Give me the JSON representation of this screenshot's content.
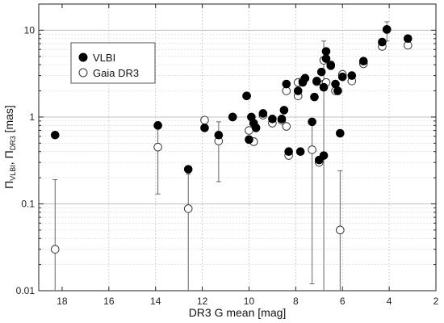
{
  "chart_data": {
    "type": "scatter",
    "xlabel": "DR3 G mean [mag]",
    "ylabel": {
      "main": "Π",
      "sub1": "VLBI",
      "sep": ", Π",
      "sub2": "DR3",
      "unit": " [mas]"
    },
    "x_reversed": true,
    "xlim": [
      19,
      2
    ],
    "ylim": [
      0.01,
      20
    ],
    "y_scale": "log",
    "grid": true,
    "x_ticks": [
      18,
      16,
      14,
      12,
      10,
      8,
      6,
      4,
      2
    ],
    "y_ticks": [
      {
        "value": 0.01,
        "label": "0.01"
      },
      {
        "value": 0.1,
        "label": "0.1"
      },
      {
        "value": 1,
        "label": "1"
      },
      {
        "value": 10,
        "label": "10"
      }
    ],
    "legend": {
      "placement": "top-left",
      "entries": [
        "VLBI",
        "Gaia DR3"
      ]
    },
    "series": [
      {
        "name": "VLBI",
        "marker": "filled-circle",
        "color": "#000000",
        "points": [
          [
            18.3,
            0.62
          ],
          [
            13.9,
            0.8
          ],
          [
            12.6,
            0.25
          ],
          [
            11.9,
            0.75
          ],
          [
            11.3,
            0.62
          ],
          [
            10.7,
            1.0
          ],
          [
            10.1,
            1.75
          ],
          [
            10.0,
            0.55
          ],
          [
            9.9,
            1.0
          ],
          [
            9.8,
            0.85
          ],
          [
            9.7,
            0.75
          ],
          [
            9.4,
            1.1
          ],
          [
            9.0,
            0.95
          ],
          [
            8.6,
            0.95
          ],
          [
            8.5,
            1.2
          ],
          [
            8.4,
            2.4
          ],
          [
            8.3,
            0.4
          ],
          [
            7.9,
            2.0
          ],
          [
            7.8,
            0.4
          ],
          [
            7.7,
            2.5
          ],
          [
            7.6,
            2.8
          ],
          [
            7.3,
            0.88
          ],
          [
            7.2,
            1.7
          ],
          [
            7.1,
            2.6
          ],
          [
            7.0,
            0.32
          ],
          [
            6.9,
            3.3
          ],
          [
            6.8,
            2.2
          ],
          [
            6.7,
            5.7
          ],
          [
            6.7,
            4.7
          ],
          [
            6.8,
            0.36
          ],
          [
            6.5,
            3.9
          ],
          [
            6.3,
            2.4
          ],
          [
            6.2,
            2.0
          ],
          [
            6.1,
            0.65
          ],
          [
            6.0,
            2.9
          ],
          [
            5.6,
            3.0
          ],
          [
            5.1,
            4.4
          ],
          [
            4.3,
            7.3
          ],
          [
            4.1,
            10.2
          ],
          [
            3.2,
            8.0
          ]
        ]
      },
      {
        "name": "Gaia DR3",
        "marker": "open-circle",
        "color": "#555555",
        "points": [
          [
            18.3,
            0.03,
            0.0,
            0.19
          ],
          [
            13.9,
            0.45,
            0.13,
            0.8
          ],
          [
            12.6,
            0.088,
            0.0,
            0.22
          ],
          [
            11.9,
            0.92,
            0.0,
            0.0
          ],
          [
            11.3,
            0.53,
            0.18,
            0.88
          ],
          [
            10.7,
            1.0,
            0.0,
            0.0
          ],
          [
            10.1,
            1.75,
            0.0,
            0.0
          ],
          [
            10.0,
            0.7,
            0.0,
            0.0
          ],
          [
            9.8,
            0.52,
            0.0,
            0.0
          ],
          [
            9.4,
            1.05,
            0.0,
            0.0
          ],
          [
            9.0,
            0.85,
            0.0,
            0.0
          ],
          [
            8.6,
            0.92,
            0.0,
            0.0
          ],
          [
            8.4,
            2.0,
            0.0,
            0.0
          ],
          [
            8.4,
            0.78,
            0.0,
            0.0
          ],
          [
            8.3,
            0.36,
            0.0,
            0.0
          ],
          [
            7.9,
            1.75,
            0.0,
            0.0
          ],
          [
            7.9,
            2.5,
            0.0,
            0.0
          ],
          [
            7.7,
            2.6,
            0.0,
            0.0
          ],
          [
            7.3,
            0.42,
            0.012,
            0.95
          ],
          [
            7.1,
            2.55,
            0.0,
            0.0
          ],
          [
            7.0,
            0.3,
            0.0,
            0.0
          ],
          [
            6.8,
            2.4,
            0.0,
            7.5
          ],
          [
            6.8,
            4.5,
            0.0,
            0.0
          ],
          [
            6.7,
            2.5,
            0.0,
            0.0
          ],
          [
            6.5,
            4.0,
            0.0,
            0.0
          ],
          [
            6.3,
            2.0,
            0.0,
            0.0
          ],
          [
            6.1,
            0.05,
            0.0,
            0.24
          ],
          [
            6.0,
            3.1,
            0.0,
            0.0
          ],
          [
            5.6,
            2.6,
            0.0,
            0.0
          ],
          [
            5.1,
            4.1,
            0.0,
            0.0
          ],
          [
            4.3,
            6.5,
            0.0,
            0.0
          ],
          [
            4.1,
            10.2,
            7.5,
            12.5
          ],
          [
            3.2,
            6.7,
            0.0,
            0.0
          ]
        ]
      }
    ]
  }
}
